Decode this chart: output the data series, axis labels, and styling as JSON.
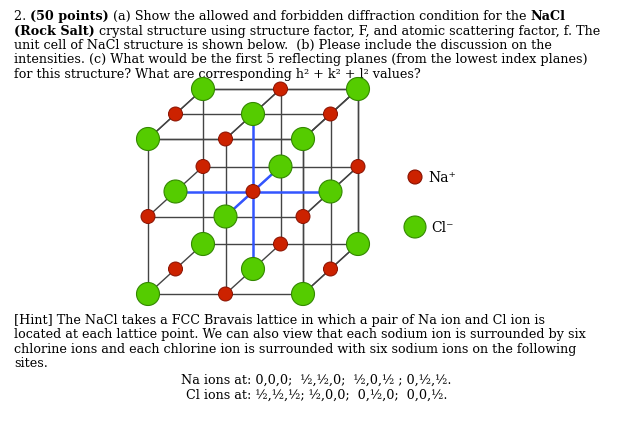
{
  "line1_parts": [
    [
      "2. ",
      false
    ],
    [
      "(50 points)",
      true
    ],
    [
      " (a) Show the allowed and forbidden diffraction condition for the ",
      false
    ],
    [
      "NaCl",
      true
    ]
  ],
  "line2_parts": [
    [
      "(Rock Salt)",
      true
    ],
    [
      " crystal structure using structure factor, F, and atomic scattering factor, f. The",
      false
    ]
  ],
  "line3": "unit cell of NaCl structure is shown below.  (b) Please include the discussion on the",
  "line4": "intensities. (c) What would be the first 5 reflecting planes (from the lowest index planes)",
  "line5": "for this structure? What are corresponding h² + k² + l² values?",
  "hint_line1": "[Hint] The NaCl takes a FCC Bravais lattice in which a pair of Na ion and Cl ion is",
  "hint_line2": "located at each lattice point. We can also view that each sodium ion is surrounded by six",
  "hint_line3": "chlorine ions and each chlorine ion is surrounded with six sodium ions on the following",
  "hint_line4": "sites.",
  "na_ions": "Na ions at: 0,0,0;  ½,½,0;  ½,0,½ ; 0,½,½.",
  "cl_ions": "Cl ions at: ½,½,½; ½,0,0;  0,½,0;  0,0,½.",
  "na_label": "Na⁺",
  "cl_label": "Cl⁻",
  "na_color": "#cc2200",
  "na_edge": "#881100",
  "cl_color": "#55cc00",
  "cl_edge": "#338800",
  "bg_color": "#ffffff",
  "text_color": "#000000",
  "fontsize_body": 9.2,
  "fontsize_hint": 9.2,
  "blue_edge_color": "#3355ff",
  "grid_color": "#444444"
}
